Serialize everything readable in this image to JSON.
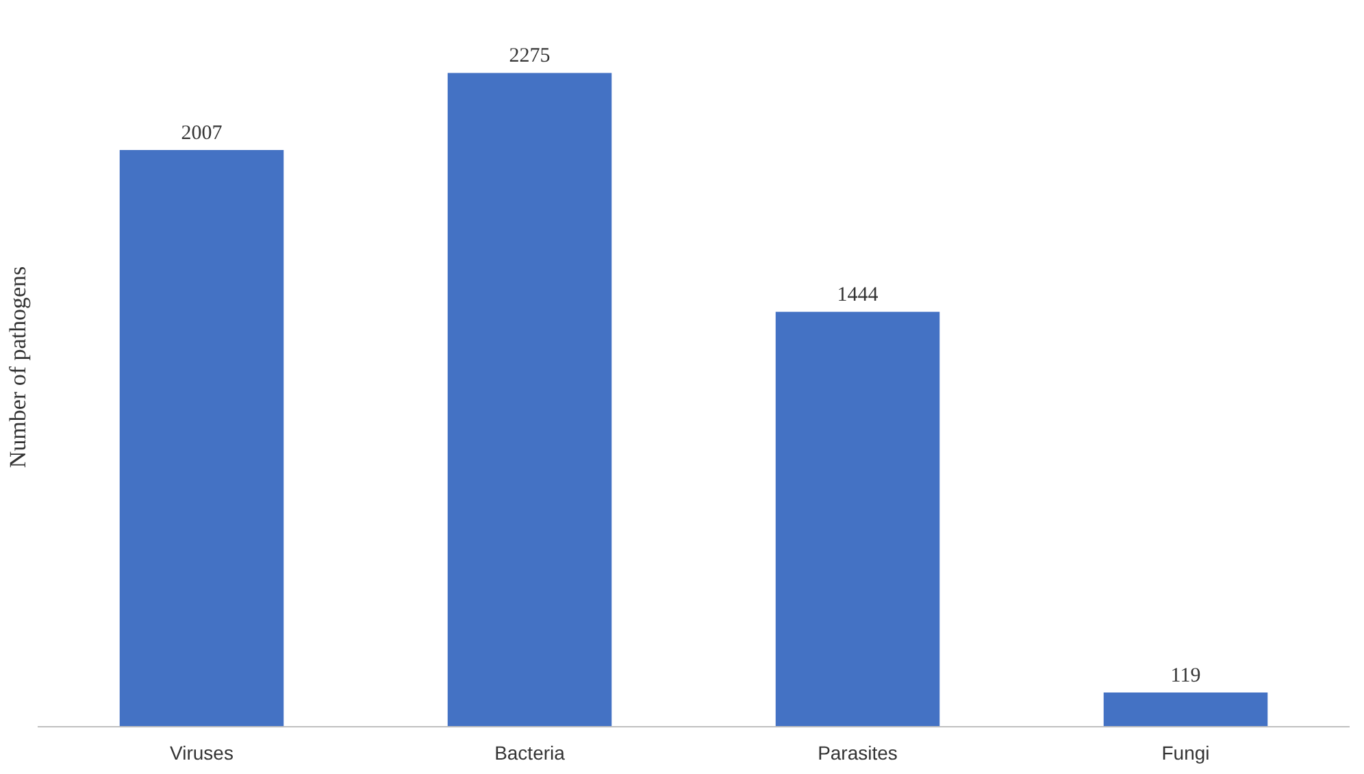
{
  "chart_data": {
    "type": "bar",
    "ylabel": "Number of pathogens",
    "categories": [
      "Viruses",
      "Bacteria",
      "Parasites",
      "Fungi"
    ],
    "values": [
      2007,
      2275,
      1444,
      119
    ],
    "color": "#4472c4",
    "data_labels": true
  }
}
